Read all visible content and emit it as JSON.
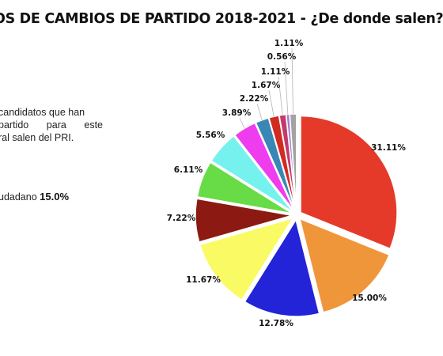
{
  "header": {
    "title": "OS DE CAMBIOS DE PARTIDO 2018-2021 - ¿De donde salen?"
  },
  "sidebar": {
    "description_lines": [
      "candidatos que han",
      "partido para este",
      "ral salen del PRI."
    ],
    "stat_label": "udadano",
    "stat_value": "15.0%"
  },
  "chart_data": {
    "type": "pie",
    "title": "OS DE CAMBIOS DE PARTIDO 2018-2021 - ¿De donde salen?",
    "legend": "none",
    "slices": [
      {
        "value": 31.11,
        "label": "31.11%",
        "color": "#e53a2a"
      },
      {
        "value": 15.0,
        "label": "15.00%",
        "color": "#f0963a"
      },
      {
        "value": 12.78,
        "label": "12.78%",
        "color": "#2323d8"
      },
      {
        "value": 11.67,
        "label": "11.67%",
        "color": "#fafa64"
      },
      {
        "value": 7.22,
        "label": "7.22%",
        "color": "#8c1a12"
      },
      {
        "value": 6.11,
        "label": "6.11%",
        "color": "#68dc46"
      },
      {
        "value": 5.56,
        "label": "5.56%",
        "color": "#76f2ee"
      },
      {
        "value": 3.89,
        "label": "3.89%",
        "color": "#ee3cee"
      },
      {
        "value": 2.22,
        "label": "2.22%",
        "color": "#3a86b4"
      },
      {
        "value": 1.67,
        "label": "1.67%",
        "color": "#d12a20"
      },
      {
        "value": 1.11,
        "label": "1.11%",
        "color": "#c23a6c"
      },
      {
        "value": 0.56,
        "label": "0.56%",
        "color": "#a87ad0"
      },
      {
        "value": 1.11,
        "label": "1.11%",
        "color": "#a3a3a3"
      }
    ]
  }
}
